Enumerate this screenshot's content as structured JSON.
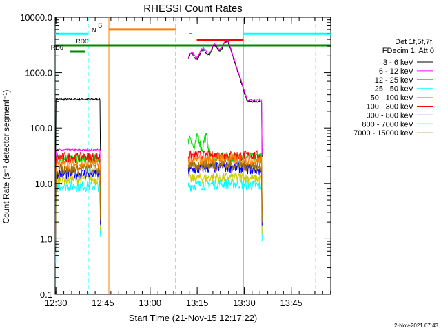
{
  "chart_data": {
    "type": "line",
    "title": "RHESSI Count Rates",
    "xlabel": "Start Time (21-Nov-15 12:17:22)",
    "ylabel": "Count Rate (s⁻¹ detector segment⁻¹)",
    "yscale": "log",
    "ylim": [
      0.1,
      10000
    ],
    "xlim_minutes": [
      12.37,
      100.2
    ],
    "x_tick_labels": [
      "12:30",
      "12:45",
      "13:00",
      "13:15",
      "13:30",
      "13:45"
    ],
    "x_tick_minutes": [
      12.63,
      27.63,
      42.63,
      57.63,
      72.63,
      87.63
    ],
    "y_tick_labels": [
      "0.1",
      "1.0",
      "10.0",
      "100.0",
      "1000.0",
      "10000.0"
    ],
    "y_tick_values": [
      0.1,
      1,
      10,
      100,
      1000,
      10000
    ],
    "legend": {
      "header": [
        "Det 1f,5f,7f,",
        "FDecim 1, Att 0"
      ],
      "placement": "right"
    },
    "series": [
      {
        "name": "3 - 6 keV",
        "color": "#000000",
        "seg1": 330,
        "seg2_peak": 3300,
        "seg2_end": 300
      },
      {
        "name": "6 - 12 keV",
        "color": "#ff00ff",
        "seg1": 40,
        "seg2_peak": 3500,
        "seg2_end": 320
      },
      {
        "name": "12 - 25 keV",
        "color": "#00dd00",
        "seg1": 28,
        "seg2_peak": 70,
        "seg2_end": 30
      },
      {
        "name": "25 - 50 keV",
        "color": "#00ffff",
        "seg1": 9,
        "seg2_peak": 10,
        "seg2_end": 9
      },
      {
        "name": "50 - 100 keV",
        "color": "#cccc00",
        "seg1": 12,
        "seg2_peak": 13,
        "seg2_end": 12
      },
      {
        "name": "100 - 300 keV",
        "color": "#ff0000",
        "seg1": 30,
        "seg2_peak": 32,
        "seg2_end": 32
      },
      {
        "name": "300 - 800 keV",
        "color": "#0000ff",
        "seg1": 15,
        "seg2_peak": 20,
        "seg2_end": 17
      },
      {
        "name": "800 - 7000 keV",
        "color": "#ff8000",
        "seg1": 22,
        "seg2_peak": 28,
        "seg2_end": 25
      },
      {
        "name": "7000 - 15000 keV",
        "color": "#a07000",
        "seg1": 18,
        "seg2_peak": 22,
        "seg2_end": 20
      }
    ],
    "segments": [
      {
        "start_min": 12.5,
        "end_min": 26.8
      },
      {
        "start_min": 54.8,
        "end_min": 78.3
      }
    ],
    "flag_bars": [
      {
        "label": "N",
        "color": "#00ffff",
        "start_min": 12.37,
        "end_min": 22.9,
        "value": 5000,
        "label_min": 24.0
      },
      {
        "label": "N",
        "color": "#00ffff",
        "start_min": 72.4,
        "end_min": 100.2,
        "value": 5000,
        "label_min": null
      },
      {
        "label": "S",
        "color": "#ff8000",
        "start_min": 29.5,
        "end_min": 50.8,
        "value": 6000,
        "label_min": 26.0
      },
      {
        "label": "F",
        "color": "#ff0000",
        "start_min": 57.5,
        "end_min": 72.4,
        "value": 3900,
        "label_min": 54.8
      },
      {
        "label": "RD0",
        "color": "#008800",
        "start_min": 12.37,
        "end_min": 100.2,
        "value": 3100,
        "label_min": 19.0
      },
      {
        "label": "RD6",
        "color": "#008800",
        "start_min": 17.0,
        "end_min": 22.0,
        "value": 2400,
        "label_min": 11.0
      }
    ],
    "vertical_markers": [
      {
        "min": 12.9,
        "color": "#00ffff",
        "style": "dashed"
      },
      {
        "min": 22.9,
        "color": "#00ffff",
        "style": "dashed"
      },
      {
        "min": 29.5,
        "color": "#ff8000",
        "style": "solid"
      },
      {
        "min": 50.8,
        "color": "#ff8000",
        "style": "dashed"
      },
      {
        "min": 72.4,
        "color": "#00ffff",
        "style": "solid"
      },
      {
        "min": 95.4,
        "color": "#00ffff",
        "style": "dashed"
      }
    ]
  },
  "footer_date": "2-Nov-2021 07:43"
}
